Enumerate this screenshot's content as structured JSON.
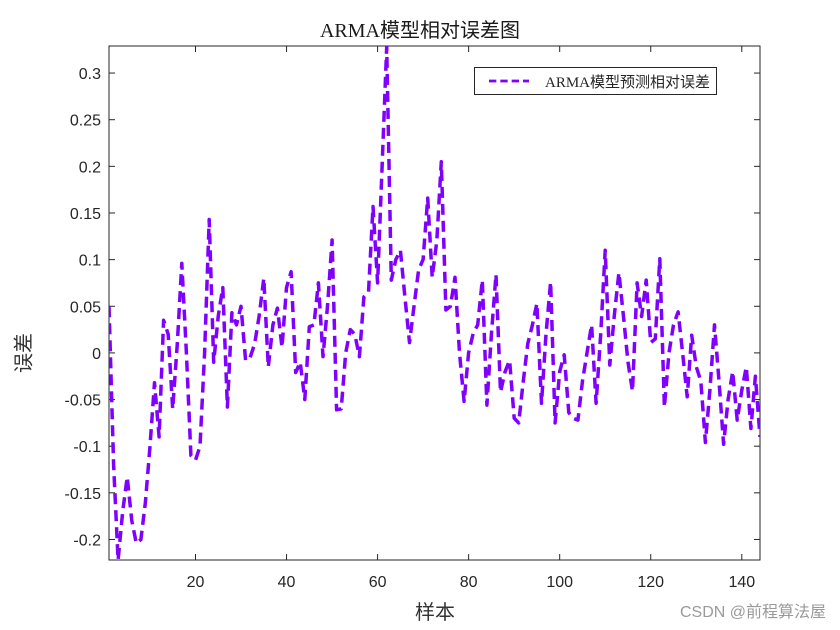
{
  "figure": {
    "title": "ARMA模型相对误差图",
    "xlabel": "样本",
    "ylabel": "误差",
    "watermark": "CSDN @前程算法屋",
    "line_color": "#8000ff"
  },
  "legend": {
    "entries": [
      {
        "label": "ARMA模型预测相对误差",
        "style": "dashed",
        "color": "#8000ff"
      }
    ]
  },
  "axes": {
    "xticks": [
      "20",
      "40",
      "60",
      "80",
      "100",
      "120",
      "140"
    ],
    "yticks": [
      "-0.2",
      "-0.15",
      "-0.1",
      "-0.05",
      "0",
      "0.05",
      "0.1",
      "0.15",
      "0.2",
      "0.25",
      "0.3"
    ]
  },
  "chart_data": {
    "type": "line",
    "title": "ARMA模型相对误差图",
    "xlabel": "样本",
    "ylabel": "误差",
    "xlim": [
      1,
      144
    ],
    "ylim": [
      -0.222,
      0.329
    ],
    "xticks": [
      20,
      40,
      60,
      80,
      100,
      120,
      140
    ],
    "yticks": [
      -0.2,
      -0.15,
      -0.1,
      -0.05,
      0,
      0.05,
      0.1,
      0.15,
      0.2,
      0.25,
      0.3
    ],
    "grid": false,
    "legend_position": "upper right",
    "series": [
      {
        "name": "ARMA模型预测相对误差",
        "line_style": "dashed",
        "color": "#8000ff",
        "x": [
          1,
          2,
          3,
          4,
          5,
          6,
          7,
          8,
          9,
          10,
          11,
          12,
          13,
          14,
          15,
          16,
          17,
          18,
          19,
          20,
          21,
          22,
          23,
          24,
          25,
          26,
          27,
          28,
          29,
          30,
          31,
          32,
          33,
          34,
          35,
          36,
          37,
          38,
          39,
          40,
          41,
          42,
          43,
          44,
          45,
          46,
          47,
          48,
          49,
          50,
          51,
          52,
          53,
          54,
          55,
          56,
          57,
          58,
          59,
          60,
          61,
          62,
          63,
          64,
          65,
          66,
          67,
          68,
          69,
          70,
          71,
          72,
          73,
          74,
          75,
          76,
          77,
          78,
          79,
          80,
          81,
          82,
          83,
          84,
          85,
          86,
          87,
          88,
          89,
          90,
          91,
          92,
          93,
          94,
          95,
          96,
          97,
          98,
          99,
          100,
          101,
          102,
          103,
          104,
          105,
          106,
          107,
          108,
          109,
          110,
          111,
          112,
          113,
          114,
          115,
          116,
          117,
          118,
          119,
          120,
          121,
          122,
          123,
          124,
          125,
          126,
          127,
          128,
          129,
          130,
          131,
          132,
          133,
          134,
          135,
          136,
          137,
          138,
          139,
          140,
          141,
          142,
          143,
          144
        ],
        "values": [
          0.05,
          -0.12,
          -0.222,
          -0.17,
          -0.133,
          -0.18,
          -0.204,
          -0.2,
          -0.16,
          -0.1,
          -0.032,
          -0.09,
          0.035,
          0.02,
          -0.06,
          0.01,
          0.096,
          0.0,
          -0.11,
          -0.115,
          -0.1,
          0.0,
          0.143,
          -0.01,
          0.04,
          0.07,
          -0.058,
          0.043,
          0.03,
          0.05,
          -0.008,
          -0.005,
          0.01,
          0.04,
          0.08,
          -0.015,
          0.03,
          0.048,
          0.006,
          0.07,
          0.087,
          -0.021,
          -0.01,
          -0.05,
          0.028,
          0.03,
          0.075,
          -0.004,
          0.05,
          0.121,
          -0.061,
          -0.06,
          0.0,
          0.025,
          0.02,
          -0.004,
          0.06,
          0.065,
          0.157,
          0.075,
          0.2,
          0.328,
          0.078,
          0.1,
          0.11,
          0.06,
          0.011,
          0.05,
          0.089,
          0.1,
          0.166,
          0.081,
          0.12,
          0.205,
          0.046,
          0.05,
          0.081,
          0.0,
          -0.052,
          0.0,
          0.021,
          0.03,
          0.078,
          -0.056,
          0.02,
          0.084,
          -0.042,
          -0.02,
          -0.008,
          -0.07,
          -0.075,
          -0.03,
          0.01,
          0.03,
          0.053,
          -0.054,
          0.02,
          0.076,
          -0.075,
          -0.02,
          -0.002,
          -0.064,
          -0.07,
          -0.072,
          -0.03,
          0.0,
          0.03,
          -0.054,
          0.02,
          0.11,
          -0.013,
          0.04,
          0.086,
          0.04,
          -0.01,
          -0.041,
          0.075,
          0.039,
          0.078,
          0.011,
          0.015,
          0.101,
          -0.058,
          0.0,
          0.03,
          0.044,
          0.0,
          -0.047,
          0.019,
          -0.015,
          -0.03,
          -0.096,
          -0.04,
          0.03,
          -0.03,
          -0.098,
          -0.05,
          -0.02,
          -0.072,
          -0.04,
          -0.015,
          -0.081,
          -0.025,
          -0.09
        ]
      }
    ]
  }
}
